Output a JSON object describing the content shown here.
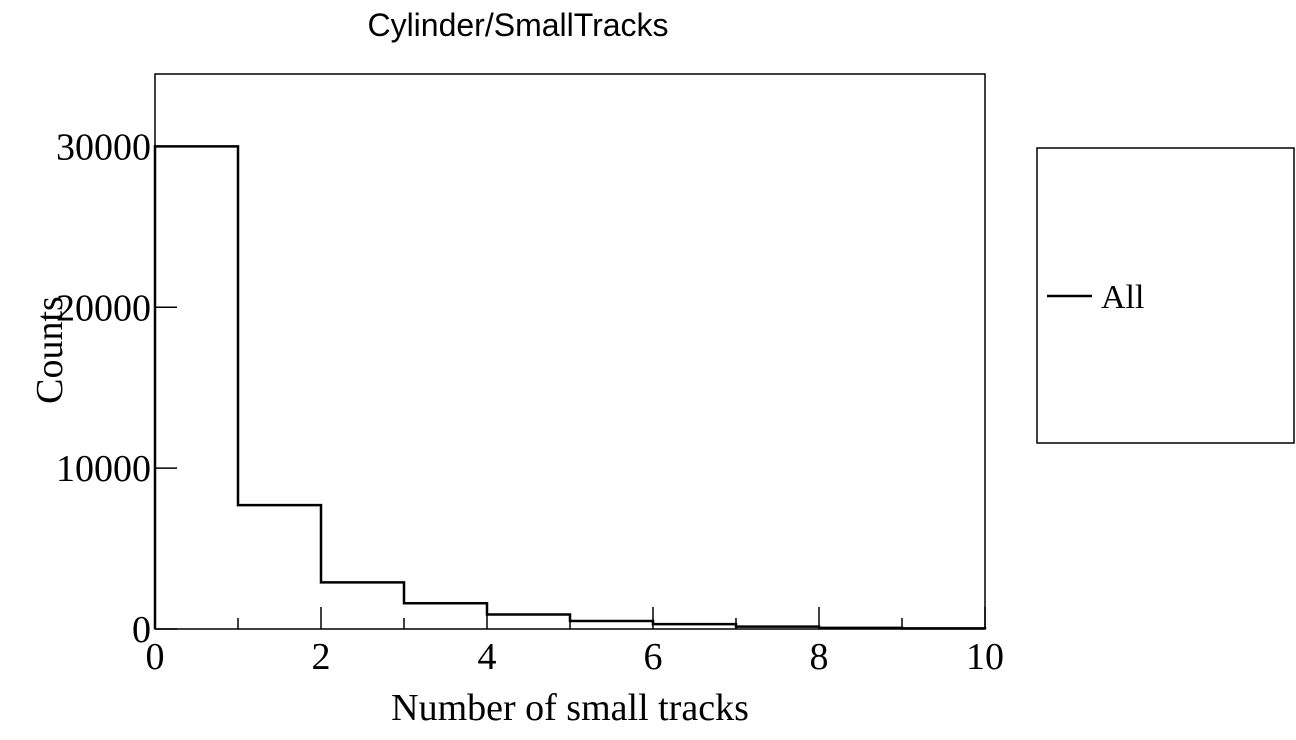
{
  "chart_data": {
    "type": "bar",
    "title": "Cylinder/SmallTracks",
    "xlabel": "Number of small tracks",
    "ylabel": "Counts",
    "xlim": [
      0,
      10
    ],
    "ylim": [
      0,
      34500
    ],
    "xticks": [
      0,
      2,
      4,
      6,
      8,
      10
    ],
    "xtick_labels": [
      "0",
      "2",
      "4",
      "6",
      "8",
      "10"
    ],
    "yticks": [
      0,
      10000,
      20000,
      30000
    ],
    "ytick_labels": [
      "0",
      "10000",
      "20000",
      "30000"
    ],
    "bin_edges": [
      0,
      1,
      2,
      3,
      4,
      5,
      6,
      7,
      8,
      9,
      10
    ],
    "series": [
      {
        "name": "All",
        "values": [
          30000,
          7700,
          2900,
          1600,
          900,
          500,
          300,
          150,
          70,
          40
        ],
        "color": "#000000"
      }
    ],
    "legend": {
      "position": "right",
      "entries": [
        "All"
      ]
    },
    "grid": false
  }
}
